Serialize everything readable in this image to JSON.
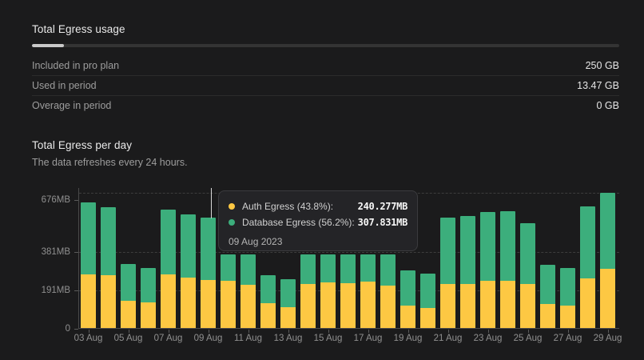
{
  "usage_summary": {
    "title": "Total Egress usage",
    "progress_percent": 5.4,
    "rows": [
      {
        "label": "Included in pro plan",
        "value": "250 GB"
      },
      {
        "label": "Used in period",
        "value": "13.47 GB"
      },
      {
        "label": "Overage in period",
        "value": "0 GB"
      }
    ]
  },
  "daily_section": {
    "title": "Total Egress per day",
    "subtitle": "The data refreshes every 24 hours."
  },
  "tooltip": {
    "rows": [
      {
        "dot": "auth-egress-dot",
        "label": "Auth Egress (43.8%):",
        "value": "240.277MB",
        "color": "#fdc843"
      },
      {
        "dot": "database-egress-dot",
        "label": "Database Egress (56.2%):",
        "value": "307.831MB",
        "color": "#3cae7c"
      }
    ],
    "date": "09 Aug 2023"
  },
  "chart_data": {
    "type": "bar",
    "stacked": true,
    "unit": "MB",
    "categories": [
      "03 Aug",
      "04 Aug",
      "05 Aug",
      "06 Aug",
      "07 Aug",
      "08 Aug",
      "09 Aug",
      "10 Aug",
      "11 Aug",
      "12 Aug",
      "13 Aug",
      "14 Aug",
      "15 Aug",
      "16 Aug",
      "17 Aug",
      "18 Aug",
      "19 Aug",
      "20 Aug",
      "21 Aug",
      "22 Aug",
      "23 Aug",
      "24 Aug",
      "25 Aug",
      "26 Aug",
      "27 Aug",
      "28 Aug",
      "29 Aug"
    ],
    "series": [
      {
        "name": "Auth Egress",
        "color": "#fdc843",
        "values": [
          265,
          261,
          135,
          126,
          265,
          252,
          240.277,
          233,
          213,
          124,
          105,
          220,
          226,
          224,
          230,
          211,
          111,
          101,
          217,
          220,
          233,
          233,
          220,
          120,
          111,
          246,
          293
        ]
      },
      {
        "name": "Database Egress",
        "color": "#3cae7c",
        "values": [
          360,
          339,
          183,
          172,
          322,
          313,
          307.831,
          133,
          153,
          140,
          139,
          146,
          140,
          142,
          136,
          155,
          175,
          169,
          332,
          335,
          345,
          349,
          302,
          193,
          188,
          358,
          381
        ]
      }
    ],
    "yticks": [
      {
        "label": "676MB",
        "value": 676
      },
      {
        "label": "381MB",
        "value": 381
      },
      {
        "label": "191MB",
        "value": 191
      },
      {
        "label": "0",
        "value": 0
      }
    ],
    "xtick_labels": [
      "03 Aug",
      "05 Aug",
      "07 Aug",
      "09 Aug",
      "11 Aug",
      "13 Aug",
      "15 Aug",
      "17 Aug",
      "19 Aug",
      "21 Aug",
      "23 Aug",
      "25 Aug",
      "27 Aug",
      "29 Aug"
    ],
    "ymax": 700,
    "ylim": [
      0,
      700
    ],
    "grid": "dashed-horizontal",
    "legend": "none",
    "hover_index": 6
  }
}
